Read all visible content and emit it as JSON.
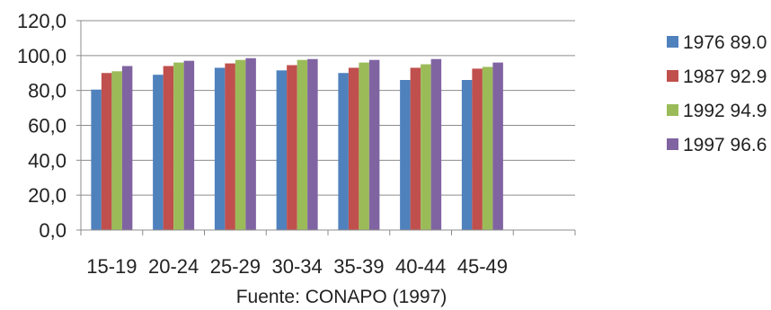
{
  "chart_data": {
    "type": "bar",
    "title": "",
    "xlabel": "",
    "ylabel": "",
    "source_note": "Fuente: CONAPO (1997)",
    "categories": [
      "15-19",
      "20-24",
      "25-29",
      "30-34",
      "35-39",
      "40-44",
      "45-49"
    ],
    "y_tick_labels": [
      "0,0",
      "20,0",
      "40,0",
      "60,0",
      "80,0",
      "100,0",
      "120,0"
    ],
    "ylim": [
      0,
      120
    ],
    "grid": true,
    "legend_position": "right",
    "series": [
      {
        "name": "1976 89.0",
        "color": "#4f81bd",
        "values": [
          80.5,
          89.0,
          93.0,
          91.5,
          90.0,
          86.0,
          86.0
        ]
      },
      {
        "name": "1987 92.9",
        "color": "#c0504d",
        "values": [
          90.0,
          94.0,
          95.5,
          94.5,
          93.0,
          93.0,
          92.5
        ]
      },
      {
        "name": "1992 94.9",
        "color": "#9bbb59",
        "values": [
          91.0,
          96.0,
          97.5,
          97.5,
          96.0,
          95.0,
          93.5
        ]
      },
      {
        "name": "1997 96.6",
        "color": "#8064a2",
        "values": [
          94.0,
          97.0,
          98.5,
          98.0,
          97.5,
          98.0,
          96.0
        ]
      }
    ]
  }
}
